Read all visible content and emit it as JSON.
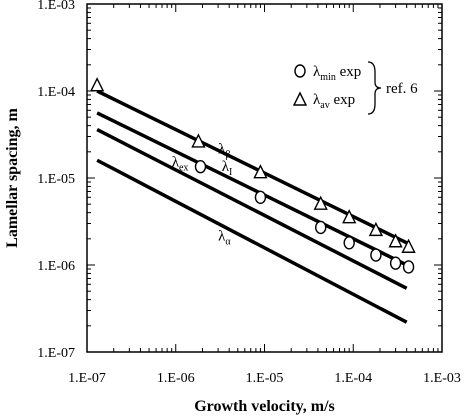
{
  "chart_data": {
    "type": "line",
    "title": "",
    "xlabel": "Growth velocity, m/s",
    "ylabel": "Lamellar spacing, m",
    "xscale": "log",
    "yscale": "log",
    "xlim": [
      1e-07,
      0.001
    ],
    "ylim": [
      1e-07,
      0.001
    ],
    "x_ticks": [
      1e-07,
      1e-06,
      1e-05,
      0.0001,
      0.001
    ],
    "x_tick_labels": [
      "1.E-07",
      "1.E-06",
      "1.E-05",
      "1.E-04",
      "1.E-03"
    ],
    "y_ticks": [
      1e-07,
      1e-06,
      1e-05,
      0.0001,
      0.001
    ],
    "y_tick_labels": [
      "1.E-07",
      "1.E-06",
      "1.E-05",
      "1.E-04",
      "1.E-03"
    ],
    "grid": false,
    "series": [
      {
        "label_main": "λ",
        "label_sub": "β",
        "x": [
          1.3e-07,
          0.0004
        ],
        "y": [
          0.0001,
          1.8e-06
        ],
        "label_at": [
          3e-06,
          1.9e-05
        ]
      },
      {
        "label_main": "λ",
        "label_sub": "I",
        "x": [
          1.3e-07,
          0.0004
        ],
        "y": [
          5.6e-05,
          1e-06
        ],
        "label_at": [
          3.3e-06,
          1.2e-05
        ]
      },
      {
        "label_main": "λ",
        "label_sub": "ex",
        "x": [
          1.3e-07,
          0.0004
        ],
        "y": [
          3.6e-05,
          5.4e-07
        ],
        "label_at": [
          9e-07,
          1.35e-05
        ]
      },
      {
        "label_main": "λ",
        "label_sub": "α",
        "x": [
          1.3e-07,
          0.0004
        ],
        "y": [
          1.6e-05,
          2.2e-07
        ],
        "label_at": [
          3e-06,
          1.9e-06
        ]
      }
    ],
    "experimental": [
      {
        "marker": "circle",
        "points": [
          [
            1.9e-06,
            1.35e-05
          ],
          [
            9e-06,
            6e-06
          ],
          [
            4.3e-05,
            2.7e-06
          ],
          [
            9e-05,
            1.8e-06
          ],
          [
            0.00018,
            1.3e-06
          ],
          [
            0.0003,
            1.05e-06
          ],
          [
            0.00042,
            9.5e-07
          ]
        ]
      },
      {
        "marker": "triangle",
        "points": [
          [
            1.3e-07,
            0.000115
          ],
          [
            1.8e-06,
            2.6e-05
          ],
          [
            9e-06,
            1.15e-05
          ],
          [
            4.3e-05,
            5e-06
          ],
          [
            9e-05,
            3.5e-06
          ],
          [
            0.00018,
            2.5e-06
          ],
          [
            0.0003,
            1.85e-06
          ],
          [
            0.00042,
            1.6e-06
          ]
        ]
      }
    ],
    "legend": {
      "placement": "top-right",
      "entries": [
        {
          "marker": "circle",
          "main": "λ",
          "sub": "min",
          "suffix": " exp"
        },
        {
          "marker": "triangle",
          "main": "λ",
          "sub": "av",
          "suffix": " exp"
        }
      ],
      "bracket_label": "ref. 6"
    }
  }
}
